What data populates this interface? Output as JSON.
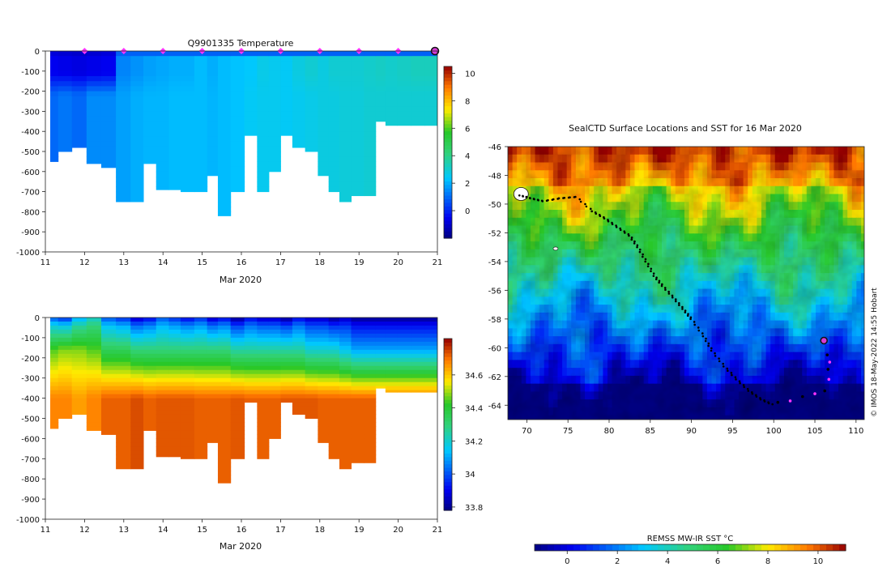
{
  "chart_data": [
    {
      "type": "heatmap",
      "title": "Q9901335  Temperature",
      "xlabel": "Mar 2020",
      "x_ticks": [
        "11",
        "12",
        "13",
        "14",
        "15",
        "16",
        "17",
        "18",
        "19",
        "20",
        "21"
      ],
      "xlim": [
        11,
        21
      ],
      "ylim": [
        -1000,
        0
      ],
      "y_ticks": [
        "0",
        "-100",
        "-200",
        "-300",
        "-400",
        "-500",
        "-600",
        "-700",
        "-800",
        "-900",
        "-1000"
      ],
      "colorbar": {
        "range": [
          -2,
          10.5
        ],
        "ticks": [
          "0",
          "2",
          "4",
          "6",
          "8",
          "10"
        ],
        "tick_values": [
          0,
          2,
          4,
          6,
          8,
          10
        ]
      },
      "profile_times": [
        11.15,
        11.5,
        11.85,
        12.25,
        12.6,
        13.0,
        13.35,
        13.65,
        14.0,
        14.3,
        14.6,
        15.0,
        15.25,
        15.55,
        15.9,
        16.25,
        16.55,
        16.85,
        17.15,
        17.45,
        17.8,
        18.1,
        18.35,
        18.65,
        18.95,
        19.3,
        19.55,
        19.8,
        20.15,
        20.5,
        20.85
      ],
      "max_depths": [
        550,
        500,
        480,
        560,
        580,
        750,
        750,
        560,
        690,
        690,
        700,
        700,
        620,
        820,
        700,
        420,
        700,
        600,
        420,
        480,
        500,
        620,
        700,
        750,
        720,
        720,
        350,
        370,
        370,
        370,
        370
      ],
      "mixed_layer_temp": [
        -0.5,
        -0.6,
        -0.7,
        -0.6,
        -0.5,
        1.4,
        1.6,
        1.8,
        1.9,
        2.0,
        2.0,
        2.2,
        2.0,
        2.2,
        2.3,
        2.4,
        2.7,
        2.6,
        2.5,
        2.8,
        3.0,
        2.8,
        3.0,
        3.0,
        3.0,
        3.1,
        3.2,
        3.1,
        3.2,
        3.3,
        3.3
      ],
      "deep_temp": [
        1.0,
        1.2,
        1.0,
        1.5,
        1.5,
        1.8,
        2.0,
        2.1,
        2.1,
        2.2,
        2.2,
        2.2,
        2.1,
        2.2,
        2.3,
        2.5,
        2.6,
        2.6,
        2.5,
        2.6,
        2.7,
        2.8,
        2.8,
        2.9,
        2.9,
        3.0,
        3.0,
        3.0,
        3.0,
        3.0,
        3.0
      ],
      "markers": [
        "12",
        "13",
        "14",
        "15",
        "16",
        "17",
        "18",
        "19",
        "20"
      ],
      "latest_marker": "21"
    },
    {
      "type": "heatmap",
      "title": "",
      "xlabel": "Mar 2020",
      "x_ticks": [
        "11",
        "12",
        "13",
        "14",
        "15",
        "16",
        "17",
        "18",
        "19",
        "20",
        "21"
      ],
      "xlim": [
        11,
        21
      ],
      "ylim": [
        -1000,
        0
      ],
      "y_ticks": [
        "0",
        "-100",
        "-200",
        "-300",
        "-400",
        "-500",
        "-600",
        "-700",
        "-800",
        "-900",
        "-1000"
      ],
      "colorbar": {
        "range": [
          33.78,
          34.82
        ],
        "ticks": [
          "33.8",
          "34",
          "34.2",
          "34.4",
          "34.6"
        ],
        "tick_values": [
          33.8,
          34.0,
          34.2,
          34.4,
          34.6
        ]
      },
      "surface_salinity": [
        34.0,
        33.95,
        34.1,
        34.2,
        34.0,
        33.95,
        33.85,
        33.9,
        34.0,
        33.95,
        33.9,
        33.95,
        33.85,
        33.9,
        33.8,
        33.9,
        33.85,
        33.85,
        33.8,
        33.9,
        33.85,
        33.85,
        33.8,
        33.85,
        33.8,
        33.8,
        33.8,
        33.8,
        33.8,
        33.8,
        33.8
      ],
      "upper_salinity": [
        34.45,
        34.48,
        34.48,
        34.45,
        34.35,
        34.35,
        34.3,
        34.3,
        34.3,
        34.3,
        34.3,
        34.3,
        34.3,
        34.3,
        34.25,
        34.25,
        34.25,
        34.25,
        34.25,
        34.25,
        34.2,
        34.2,
        34.2,
        34.15,
        34.1,
        34.1,
        34.1,
        34.1,
        34.1,
        34.1,
        34.1
      ],
      "deep_salinity": [
        34.68,
        34.68,
        34.65,
        34.68,
        34.72,
        34.72,
        34.74,
        34.72,
        34.73,
        34.73,
        34.73,
        34.72,
        34.72,
        34.72,
        34.73,
        34.72,
        34.72,
        34.72,
        34.73,
        34.73,
        34.73,
        34.72,
        34.72,
        34.72,
        34.72,
        34.72,
        34.72,
        34.72,
        34.72,
        34.72,
        34.72
      ]
    },
    {
      "type": "heatmap",
      "title": "SealCTD Surface Locations and SST for 16 Mar 2020",
      "xlabel": "",
      "x_ticks": [
        "70",
        "75",
        "80",
        "85",
        "90",
        "95",
        "100",
        "105",
        "110"
      ],
      "x_tick_values": [
        70,
        75,
        80,
        85,
        90,
        95,
        100,
        105,
        110
      ],
      "xlim": [
        67.7,
        111
      ],
      "y_ticks": [
        "-46",
        "-48",
        "-50",
        "-52",
        "-54",
        "-56",
        "-58",
        "-60",
        "-62",
        "-64"
      ],
      "y_tick_values": [
        -46,
        -48,
        -50,
        -52,
        -54,
        -56,
        -58,
        -60,
        -62,
        -64
      ],
      "ylim": [
        -65,
        -46
      ],
      "colorbar": {
        "label": "REMSS MW-IR SST °C",
        "range": [
          -1.3,
          11.1
        ],
        "ticks": [
          "0",
          "2",
          "4",
          "6",
          "8",
          "10"
        ],
        "tick_values": [
          0,
          2,
          4,
          6,
          8,
          10
        ]
      },
      "track": [
        [
          69.2,
          -49.4
        ],
        [
          70.5,
          -49.6
        ],
        [
          72,
          -49.8
        ],
        [
          74,
          -49.6
        ],
        [
          76,
          -49.5
        ],
        [
          78,
          -50.5
        ],
        [
          79.5,
          -51
        ],
        [
          81,
          -51.6
        ],
        [
          82.5,
          -52.2
        ],
        [
          83.5,
          -53
        ],
        [
          84.5,
          -54
        ],
        [
          85.5,
          -55
        ],
        [
          86.5,
          -55.7
        ],
        [
          87.8,
          -56.5
        ],
        [
          89,
          -57.3
        ],
        [
          90,
          -58
        ],
        [
          91.5,
          -59.2
        ],
        [
          92.5,
          -60.2
        ],
        [
          94,
          -61.3
        ],
        [
          95.5,
          -62.2
        ],
        [
          97,
          -63
        ],
        [
          98.5,
          -63.6
        ],
        [
          100,
          -64
        ]
      ],
      "recent_track": [
        [
          100.5,
          -63.8
        ],
        [
          102,
          -63.7
        ],
        [
          103.5,
          -63.4
        ],
        [
          105,
          -63.2
        ],
        [
          106.2,
          -63
        ],
        [
          106.7,
          -62.2
        ],
        [
          106.6,
          -61.5
        ],
        [
          106.8,
          -61
        ],
        [
          106.5,
          -60.5
        ],
        [
          106.2,
          -59.5
        ]
      ],
      "current_position": [
        106.1,
        -59.5
      ],
      "side_label": "© IMOS 18-May-2022 14:55 Hobart"
    }
  ]
}
